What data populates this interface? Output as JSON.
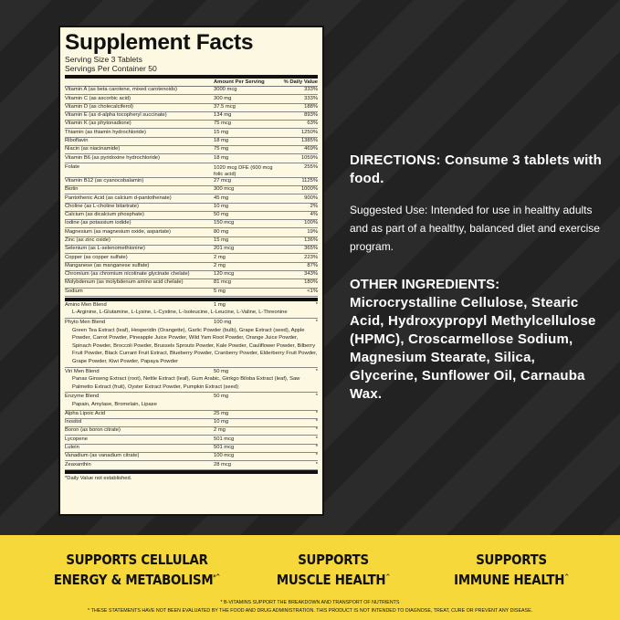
{
  "facts": {
    "title": "Supplement Facts",
    "serving_size": "Serving Size 3 Tablets",
    "servings_per_container": "Servings Per Container 50",
    "col_amount": "Amount Per Serving",
    "col_dv": "% Daily Value",
    "nutrients": [
      [
        "Vitamin A (as beta carotene, mixed carotenoids)",
        "3000 mcg",
        "333%"
      ],
      [
        "Vitamin C (as ascorbic acid)",
        "300 mg",
        "333%"
      ],
      [
        "Vitamin D (as cholecalciferol)",
        "37.5 mcg",
        "188%"
      ],
      [
        "Vitamin E (as d-alpha tocopheryl succinate)",
        "134 mg",
        "893%"
      ],
      [
        "Vitamin K (as phytonadione)",
        "75 mcg",
        "63%"
      ],
      [
        "Thiamin (as thiamin hydrochloride)",
        "15 mg",
        "1250%"
      ],
      [
        "Riboflavin",
        "18 mg",
        "1385%"
      ],
      [
        "Niacin (as niacinamide)",
        "75 mg",
        "469%"
      ],
      [
        "Vitamin B6 (as pyridoxine hydrochloride)",
        "18 mg",
        "1059%"
      ],
      [
        "Folate",
        "1020 mcg DFE (600 mcg folic acid)",
        "255%"
      ],
      [
        "Vitamin B12 (as cyanocobalamin)",
        "27 mcg",
        "1125%"
      ],
      [
        "Biotin",
        "300 mcg",
        "1000%"
      ],
      [
        "Pantothenic Acid (as calcium d-pantothenate)",
        "45 mg",
        "900%"
      ],
      [
        "Choline (as L-choline bitartrate)",
        "10 mg",
        "2%"
      ],
      [
        "Calcium (as dicalcium phosphate)",
        "50 mg",
        "4%"
      ],
      [
        "Iodine (as potassium iodide)",
        "150 mcg",
        "100%"
      ],
      [
        "Magnesium (as magnesium oxide, aspartate)",
        "80 mg",
        "19%"
      ],
      [
        "Zinc (as zinc oxide)",
        "15 mg",
        "136%"
      ],
      [
        "Selenium (as L-selenomethionine)",
        "201 mcg",
        "365%"
      ],
      [
        "Copper (as copper sulfate)",
        "2 mg",
        "223%"
      ],
      [
        "Manganese (as manganese sulfate)",
        "2 mg",
        "87%"
      ],
      [
        "Chromium (as chromium nicotinate glycinate chelate)",
        "120 mcg",
        "343%"
      ],
      [
        "Molybdenum (as molybdenum amino acid chelate)",
        "81 mcg",
        "180%"
      ],
      [
        "Sodium",
        "5 mg",
        "<1%"
      ]
    ],
    "blends": [
      {
        "name": "Amino Men Blend",
        "amount": "1 mg",
        "dv": "*",
        "ingredients": "L-Arginine, L-Glutamine, L-Lysine, L-Cystine, L-Isoleucine, L-Leucine, L-Valine, L-Threonine"
      },
      {
        "name": "Phyto Men Blend",
        "amount": "100 mg",
        "dv": "*",
        "ingredients": "Green Tea Extract (leaf), Hesperidin (Orangette), Garlic Powder (bulb), Grape Extract (seed), Apple Powder, Carrot Powder, Pineapple Juice Powder, Wild Yam Root Powder, Orange Juice Powder, Spinach Powder, Broccoli Powder, Brussels Sprouts Powder, Kale Powder, Cauliflower Powder, Bilberry Fruit Powder, Black Currant Fruit Extract, Blueberry Powder, Cranberry Powder, Elderberry Fruit Powder, Grape Powder, Kiwi Powder, Papaya Powder"
      },
      {
        "name": "Viri Men Blend",
        "amount": "50 mg",
        "dv": "*",
        "ingredients": "Panax Ginseng Extract (root), Nettle Extract (leaf), Gum Arabic, Ginkgo Biloba Extract (leaf), Saw Palmetto Extract (fruit), Oyster Extract Powder, Pumpkin Extract (seed)"
      },
      {
        "name": "Enzyme Blend",
        "amount": "50 mg",
        "dv": "*",
        "ingredients": "Papain, Amylase, Bromelain, Lipase"
      }
    ],
    "others": [
      [
        "Alpha Lipoic Acid",
        "25 mg",
        "*"
      ],
      [
        "Inositol",
        "10 mg",
        "*"
      ],
      [
        "Boron (as boron citrate)",
        "2 mg",
        "*"
      ],
      [
        "Lycopene",
        "501 mcg",
        "*"
      ],
      [
        "Lutein",
        "501 mcg",
        "*"
      ],
      [
        "Vanadium (as vanadium citrate)",
        "100 mcg",
        "*"
      ],
      [
        "Zeaxanthin",
        "28 mcg",
        "*"
      ]
    ],
    "footnote": "*Daily Value not established."
  },
  "directions": "DIRECTIONS: Consume 3 tablets with food.",
  "suggested_use": "Suggested Use: Intended for use in healthy adults and as part of a healthy, balanced diet and exercise program.",
  "other_ingredients_label": "OTHER INGREDIENTS:",
  "other_ingredients": "Microcrystalline Cellulose, Stearic Acid, Hydroxypropyl Methylcellulose (HPMC), Croscarmellose Sodium, Magnesium Stearate, Silica, Glycerine, Sunflower Oil, Carnauba Wax.",
  "claims": [
    {
      "l1": "SUPPORTS CELLULAR",
      "l2": "ENERGY & METABOLISM",
      "mark": "*^"
    },
    {
      "l1": "SUPPORTS",
      "l2": "MUSCLE HEALTH",
      "mark": "^"
    },
    {
      "l1": "SUPPORTS",
      "l2": "IMMUNE HEALTH",
      "mark": "^"
    }
  ],
  "note1": "* B-VITAMINS SUPPORT THE BREAKDOWN AND TRANSPORT OF NUTRIENTS",
  "note2": "^ THESE STATEMENTS HAVE NOT BEEN EVALUATED BY THE FOOD AND DRUG ADMINISTRATION. THIS PRODUCT IS NOT INTENDED TO DIAGNOSE, TREAT, CURE OR PREVENT ANY DISEASE.",
  "colors": {
    "band": "#f6d83b",
    "panel": "#fdf8e1",
    "background": "#262626"
  }
}
